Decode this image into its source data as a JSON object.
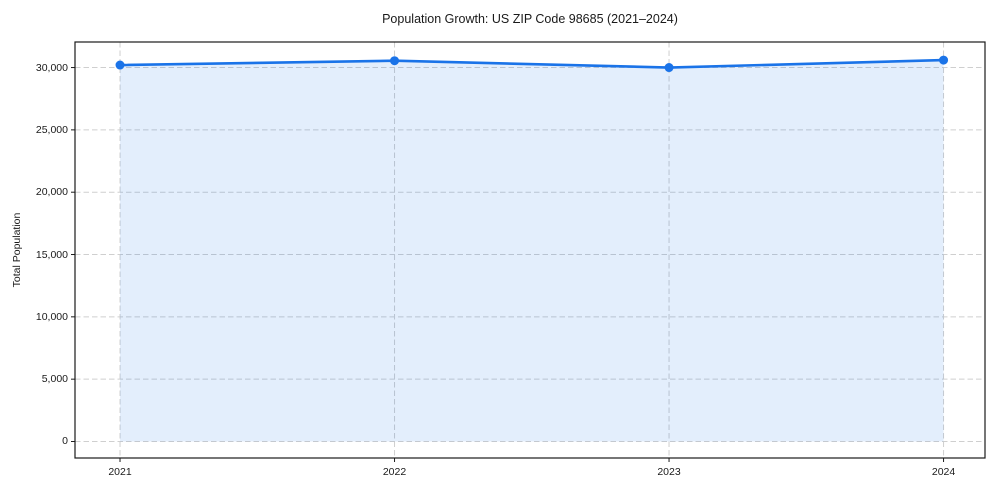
{
  "chart_data": {
    "type": "line",
    "title": "Population Growth: US ZIP Code 98685 (2021–2024)",
    "xlabel": "",
    "ylabel": "Total Population",
    "x": [
      2021,
      2022,
      2023,
      2024
    ],
    "x_tick_labels": [
      "2021",
      "2022",
      "2023",
      "2024"
    ],
    "series": [
      {
        "name": "Total Population",
        "values": [
          30200,
          30550,
          30000,
          30600
        ]
      }
    ],
    "y_ticks": [
      0,
      5000,
      10000,
      15000,
      20000,
      25000,
      30000
    ],
    "y_tick_labels": [
      "0",
      "5,000",
      "10,000",
      "15,000",
      "20,000",
      "25,000",
      "30,000"
    ],
    "xlim": [
      2020.836,
      2024.151
    ],
    "ylim": [
      -1325,
      32050
    ],
    "grid": true,
    "grid_style": "dashed",
    "legend": "none",
    "area_fill_to_zero": true,
    "colors": {
      "line": "#1a73e8",
      "marker": "#1a73e8",
      "fill": "rgba(26,115,232,0.12)",
      "grid": "#cfcfcf",
      "axis": "#1a1a1a",
      "text": "#1a1a1a",
      "background": "#ffffff"
    }
  }
}
